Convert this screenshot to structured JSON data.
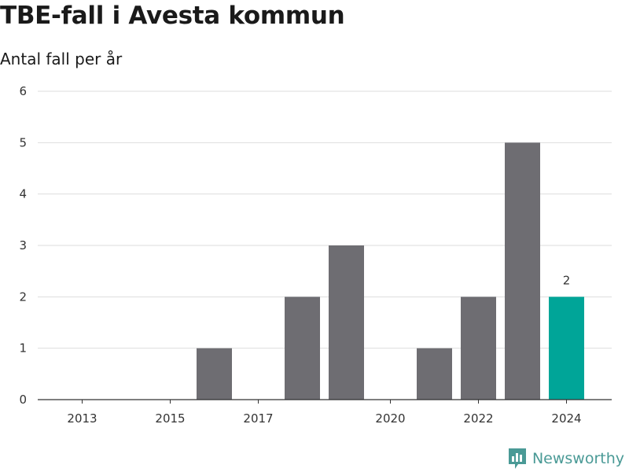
{
  "title": "TBE-fall i Avesta kommun",
  "subtitle": "Antal fall per år",
  "brand": "Newsworthy",
  "colors": {
    "bar": "#6e6d72",
    "highlight": "#00a598",
    "grid": "#dddddd",
    "brand": "#4a9a96"
  },
  "chart_data": {
    "type": "bar",
    "title": "TBE-fall i Avesta kommun",
    "subtitle": "Antal fall per år",
    "x": [
      2013,
      2014,
      2015,
      2016,
      2017,
      2018,
      2019,
      2020,
      2021,
      2022,
      2023,
      2024
    ],
    "values": [
      0,
      0,
      0,
      1,
      0,
      2,
      3,
      0,
      1,
      2,
      5,
      2
    ],
    "x_tick_labels": [
      "2013",
      "2015",
      "2017",
      "2020",
      "2022",
      "2024"
    ],
    "y_ticks": [
      0,
      1,
      2,
      3,
      4,
      5,
      6
    ],
    "ylim": [
      0,
      6
    ],
    "highlight_category": 2024,
    "data_labels": [
      {
        "x": 2024,
        "text": "2"
      }
    ],
    "grid": true
  }
}
